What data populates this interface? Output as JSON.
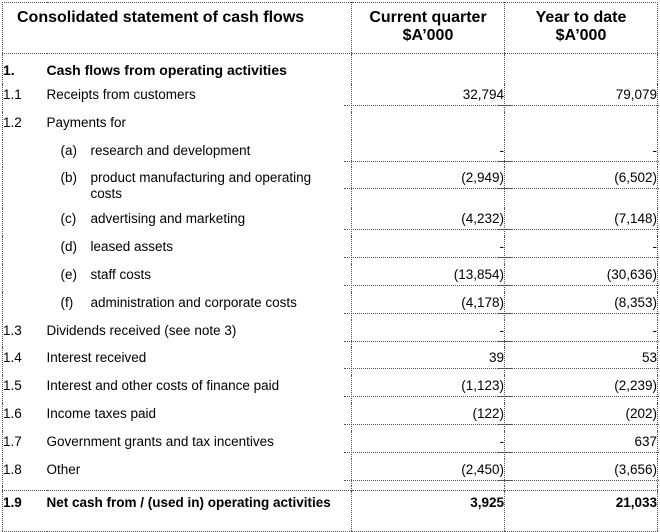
{
  "header": {
    "title": "Consolidated statement of cash flows",
    "col1_line1": "Current quarter",
    "col1_line2": "$A’000",
    "col2_line1": "Year to date",
    "col2_line2": "$A’000"
  },
  "section": {
    "num": "1.",
    "label": "Cash flows from operating activities"
  },
  "rows": [
    {
      "num": "1.1",
      "label": "Receipts from customers",
      "cq": "32,794",
      "ytd": "79,079"
    },
    {
      "num": "1.2",
      "label": "Payments for",
      "cq": "",
      "ytd": ""
    },
    {
      "sub": "(a)",
      "label": "research and development",
      "cq": "-",
      "ytd": "-"
    },
    {
      "sub": "(b)",
      "label": "product manufacturing and operating costs",
      "cq": "(2,949)",
      "ytd": "(6,502)"
    },
    {
      "sub": "(c)",
      "label": "advertising and marketing",
      "cq": "(4,232)",
      "ytd": "(7,148)"
    },
    {
      "sub": "(d)",
      "label": "leased assets",
      "cq": "-",
      "ytd": "-"
    },
    {
      "sub": "(e)",
      "label": "staff costs",
      "cq": "(13,854)",
      "ytd": "(30,636)"
    },
    {
      "sub": "(f)",
      "label": "administration and corporate costs",
      "cq": "(4,178)",
      "ytd": "(8,353)"
    },
    {
      "num": "1.3",
      "label": "Dividends received (see note 3)",
      "cq": "-",
      "ytd": "-"
    },
    {
      "num": "1.4",
      "label": "Interest received",
      "cq": "39",
      "ytd": "53"
    },
    {
      "num": "1.5",
      "label": "Interest and other costs of finance paid",
      "cq": "(1,123)",
      "ytd": "(2,239)"
    },
    {
      "num": "1.6",
      "label": "Income taxes paid",
      "cq": "(122)",
      "ytd": "(202)"
    },
    {
      "num": "1.7",
      "label": "Government grants and tax incentives",
      "cq": "-",
      "ytd": "637"
    },
    {
      "num": "1.8",
      "label": "Other",
      "cq": "(2,450)",
      "ytd": "(3,656)"
    }
  ],
  "total": {
    "num": "1.9",
    "label": "Net cash from / (used in) operating activities",
    "cq": "3,925",
    "ytd": "21,033"
  }
}
